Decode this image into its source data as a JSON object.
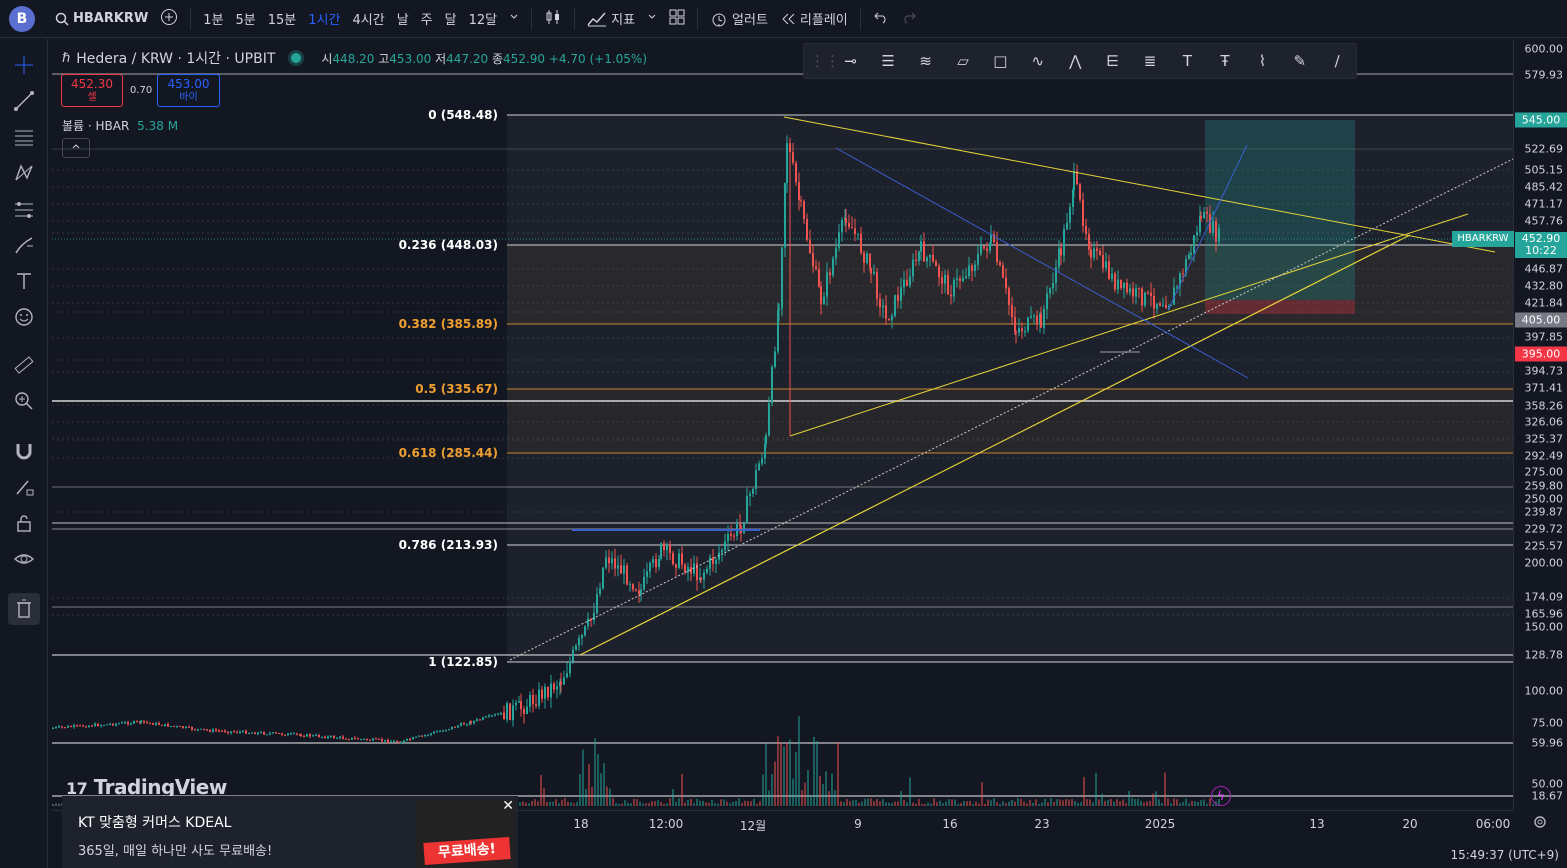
{
  "topbar": {
    "logo": "B",
    "symbol": "HBARKRW",
    "intervals": [
      "1분",
      "5분",
      "15분",
      "1시간",
      "4시간",
      "날",
      "주",
      "달",
      "12달"
    ],
    "active_interval": "1시간",
    "indicators": "지표",
    "alerts": "얼러트",
    "replay": "리플레이"
  },
  "legend": {
    "title": "Hedera / KRW · 1시간 · UPBIT",
    "open_label": "시",
    "open": "448.20",
    "high_label": "고",
    "high": "453.00",
    "low_label": "저",
    "low": "447.20",
    "close_label": "종",
    "close": "452.90",
    "change": "+4.70 (+1.05%)"
  },
  "trade": {
    "sell_price": "452.30",
    "sell_label": "셀",
    "spread": "0.70",
    "buy_price": "453.00",
    "buy_label": "바이"
  },
  "volume_legend": {
    "label": "볼륨 · HBAR",
    "value": "5.38 M"
  },
  "fib_levels": [
    {
      "label": "0 (548.48)",
      "color": "#ffffff"
    },
    {
      "label": "0.236 (448.03)",
      "color": "#ffffff"
    },
    {
      "label": "0.382 (385.89)",
      "color": "#f0a030"
    },
    {
      "label": "0.5 (335.67)",
      "color": "#f0a030"
    },
    {
      "label": "0.618 (285.44)",
      "color": "#f0a030"
    },
    {
      "label": "0.786 (213.93)",
      "color": "#ffffff"
    },
    {
      "label": "1 (122.85)",
      "color": "#ffffff"
    }
  ],
  "price_axis": {
    "ticks": [
      "600.00",
      "579.93",
      "522.69",
      "505.15",
      "485.42",
      "471.17",
      "457.76",
      "446.87",
      "432.80",
      "421.84",
      "397.85",
      "394.73",
      "371.41",
      "358.26",
      "326.06",
      "325.37",
      "292.49",
      "275.00",
      "259.80",
      "250.00",
      "239.87",
      "229.72",
      "225.57",
      "200.00",
      "174.09",
      "165.96",
      "150.00",
      "128.78",
      "100.00",
      "75.00",
      "59.96",
      "50.00",
      "18.67"
    ],
    "take_profit": "545.00",
    "current": "452.90",
    "countdown": "10:22",
    "entry": "405.00",
    "stop": "395.00",
    "ticker_tag": "HBARKRW"
  },
  "time_axis": [
    "18",
    "12:00",
    "12월",
    "9",
    "16",
    "23",
    "2025",
    "13",
    "20",
    "06:00"
  ],
  "clock": "15:49:37 (UTC+9)",
  "ad": {
    "title": "KT 맞춤형 커머스 KDEAL",
    "desc": "365일, 매일 하나만 사도 무료배송!",
    "img_text": "무료배송!"
  },
  "watermark": "TradingView",
  "colors": {
    "up": "#26a69a",
    "down": "#ef5350",
    "yellow": "#e6d43a",
    "blue": "#3a5fd0"
  }
}
